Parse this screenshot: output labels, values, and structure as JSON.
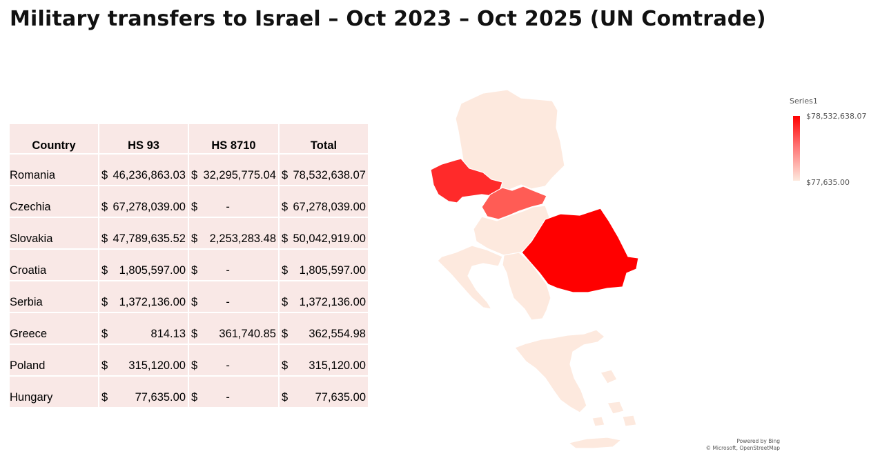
{
  "title": "Military transfers to Israel – Oct 2023 – Oct 2025 (UN Comtrade)",
  "table": {
    "headers": [
      "Country",
      "HS 93",
      "HS 8710",
      "Total"
    ],
    "currency_symbol": "$",
    "rows": [
      {
        "country": "Romania",
        "hs93": "46,236,863.03",
        "hs8710": "32,295,775.04",
        "total": "78,532,638.07"
      },
      {
        "country": "Czechia",
        "hs93": "67,278,039.00",
        "hs8710": "-",
        "total": "67,278,039.00"
      },
      {
        "country": "Slovakia",
        "hs93": "47,789,635.52",
        "hs8710": "2,253,283.48",
        "total": "50,042,919.00"
      },
      {
        "country": "Croatia",
        "hs93": "1,805,597.00",
        "hs8710": "-",
        "total": "1,805,597.00"
      },
      {
        "country": "Serbia",
        "hs93": "1,372,136.00",
        "hs8710": "-",
        "total": "1,372,136.00"
      },
      {
        "country": "Greece",
        "hs93": "814.13",
        "hs8710": "361,740.85",
        "total": "362,554.98"
      },
      {
        "country": "Poland",
        "hs93": "315,120.00",
        "hs8710": "-",
        "total": "315,120.00"
      },
      {
        "country": "Hungary",
        "hs93": "77,635.00",
        "hs8710": "-",
        "total": "77,635.00"
      }
    ]
  },
  "map": {
    "colors": {
      "high": "#ff0000",
      "czechia": "#ff2a2a",
      "slovakia": "#ff5c55",
      "low": "#fde9de",
      "border": "#ffffff"
    }
  },
  "legend": {
    "series_name": "Series1",
    "max_label": "$78,532,638.07",
    "min_label": "$77,635.00"
  },
  "attribution": {
    "line1": "Powered by Bing",
    "line2": "© Microsoft, OpenStreetMap"
  }
}
